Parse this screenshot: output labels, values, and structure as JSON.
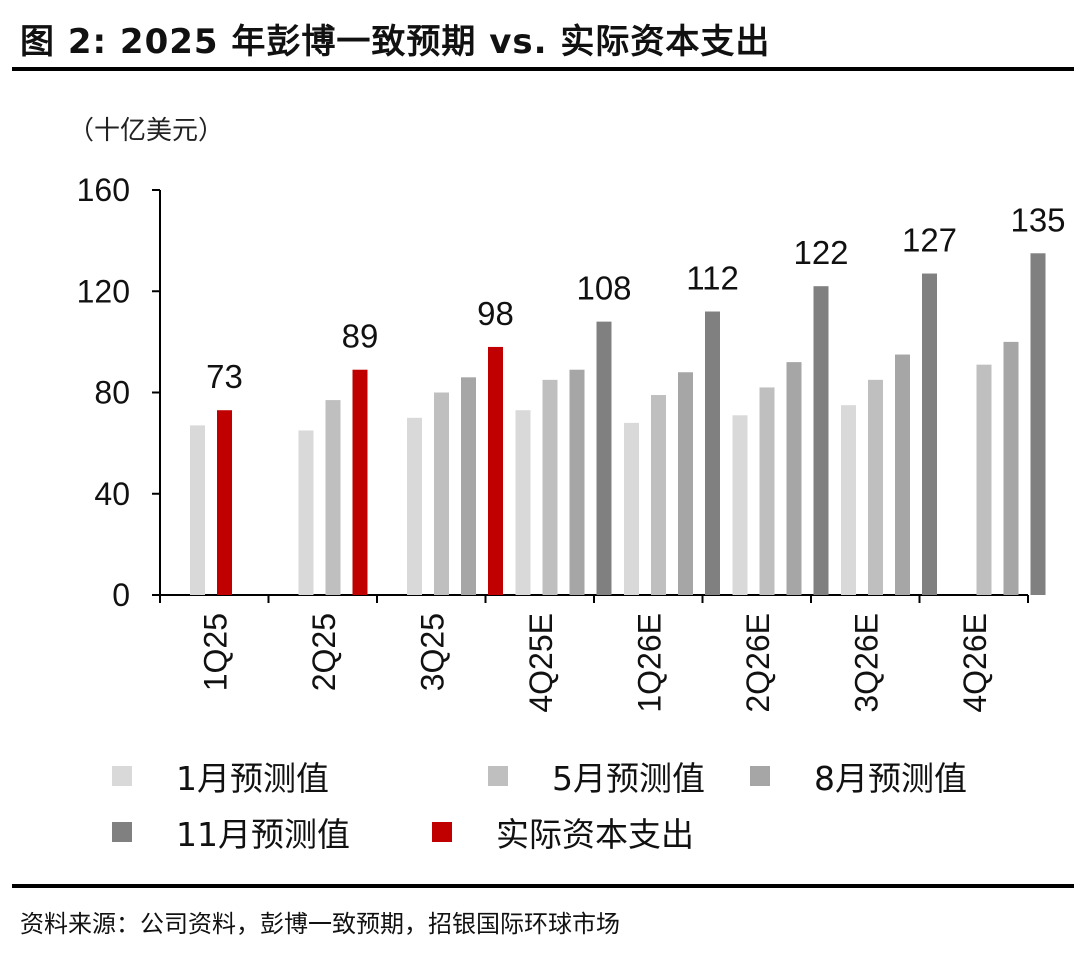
{
  "title": "图 2: 2025 年彭博一致预期 vs. 实际资本支出",
  "source": "资料来源：公司资料，彭博一致预期，招银国际环球市场",
  "chart_data": {
    "type": "bar",
    "unit_label": "（十亿美元）",
    "ylim": [
      0,
      160
    ],
    "yticks": [
      0,
      40,
      80,
      120,
      160
    ],
    "categories": [
      "1Q25",
      "2Q25",
      "3Q25",
      "4Q25E",
      "1Q26E",
      "2Q26E",
      "3Q26E",
      "4Q26E"
    ],
    "series": [
      {
        "name": "1月预测值",
        "color": "#d9d9d9",
        "values": [
          67,
          65,
          70,
          73,
          68,
          71,
          75,
          null
        ]
      },
      {
        "name": "5月预测值",
        "color": "#bfbfbf",
        "values": [
          null,
          77,
          80,
          85,
          79,
          82,
          85,
          91
        ]
      },
      {
        "name": "8月预测值",
        "color": "#a6a6a6",
        "values": [
          null,
          null,
          86,
          89,
          88,
          92,
          95,
          100
        ]
      },
      {
        "name": "11月预测值",
        "color": "#808080",
        "values": [
          null,
          null,
          null,
          108,
          112,
          122,
          127,
          135
        ]
      },
      {
        "name": "实际资本支出",
        "color": "#c00000",
        "values": [
          73,
          89,
          98,
          null,
          null,
          null,
          null,
          null
        ]
      }
    ],
    "data_labels": [
      "73",
      "89",
      "98",
      "108",
      "112",
      "122",
      "127",
      "135"
    ]
  }
}
